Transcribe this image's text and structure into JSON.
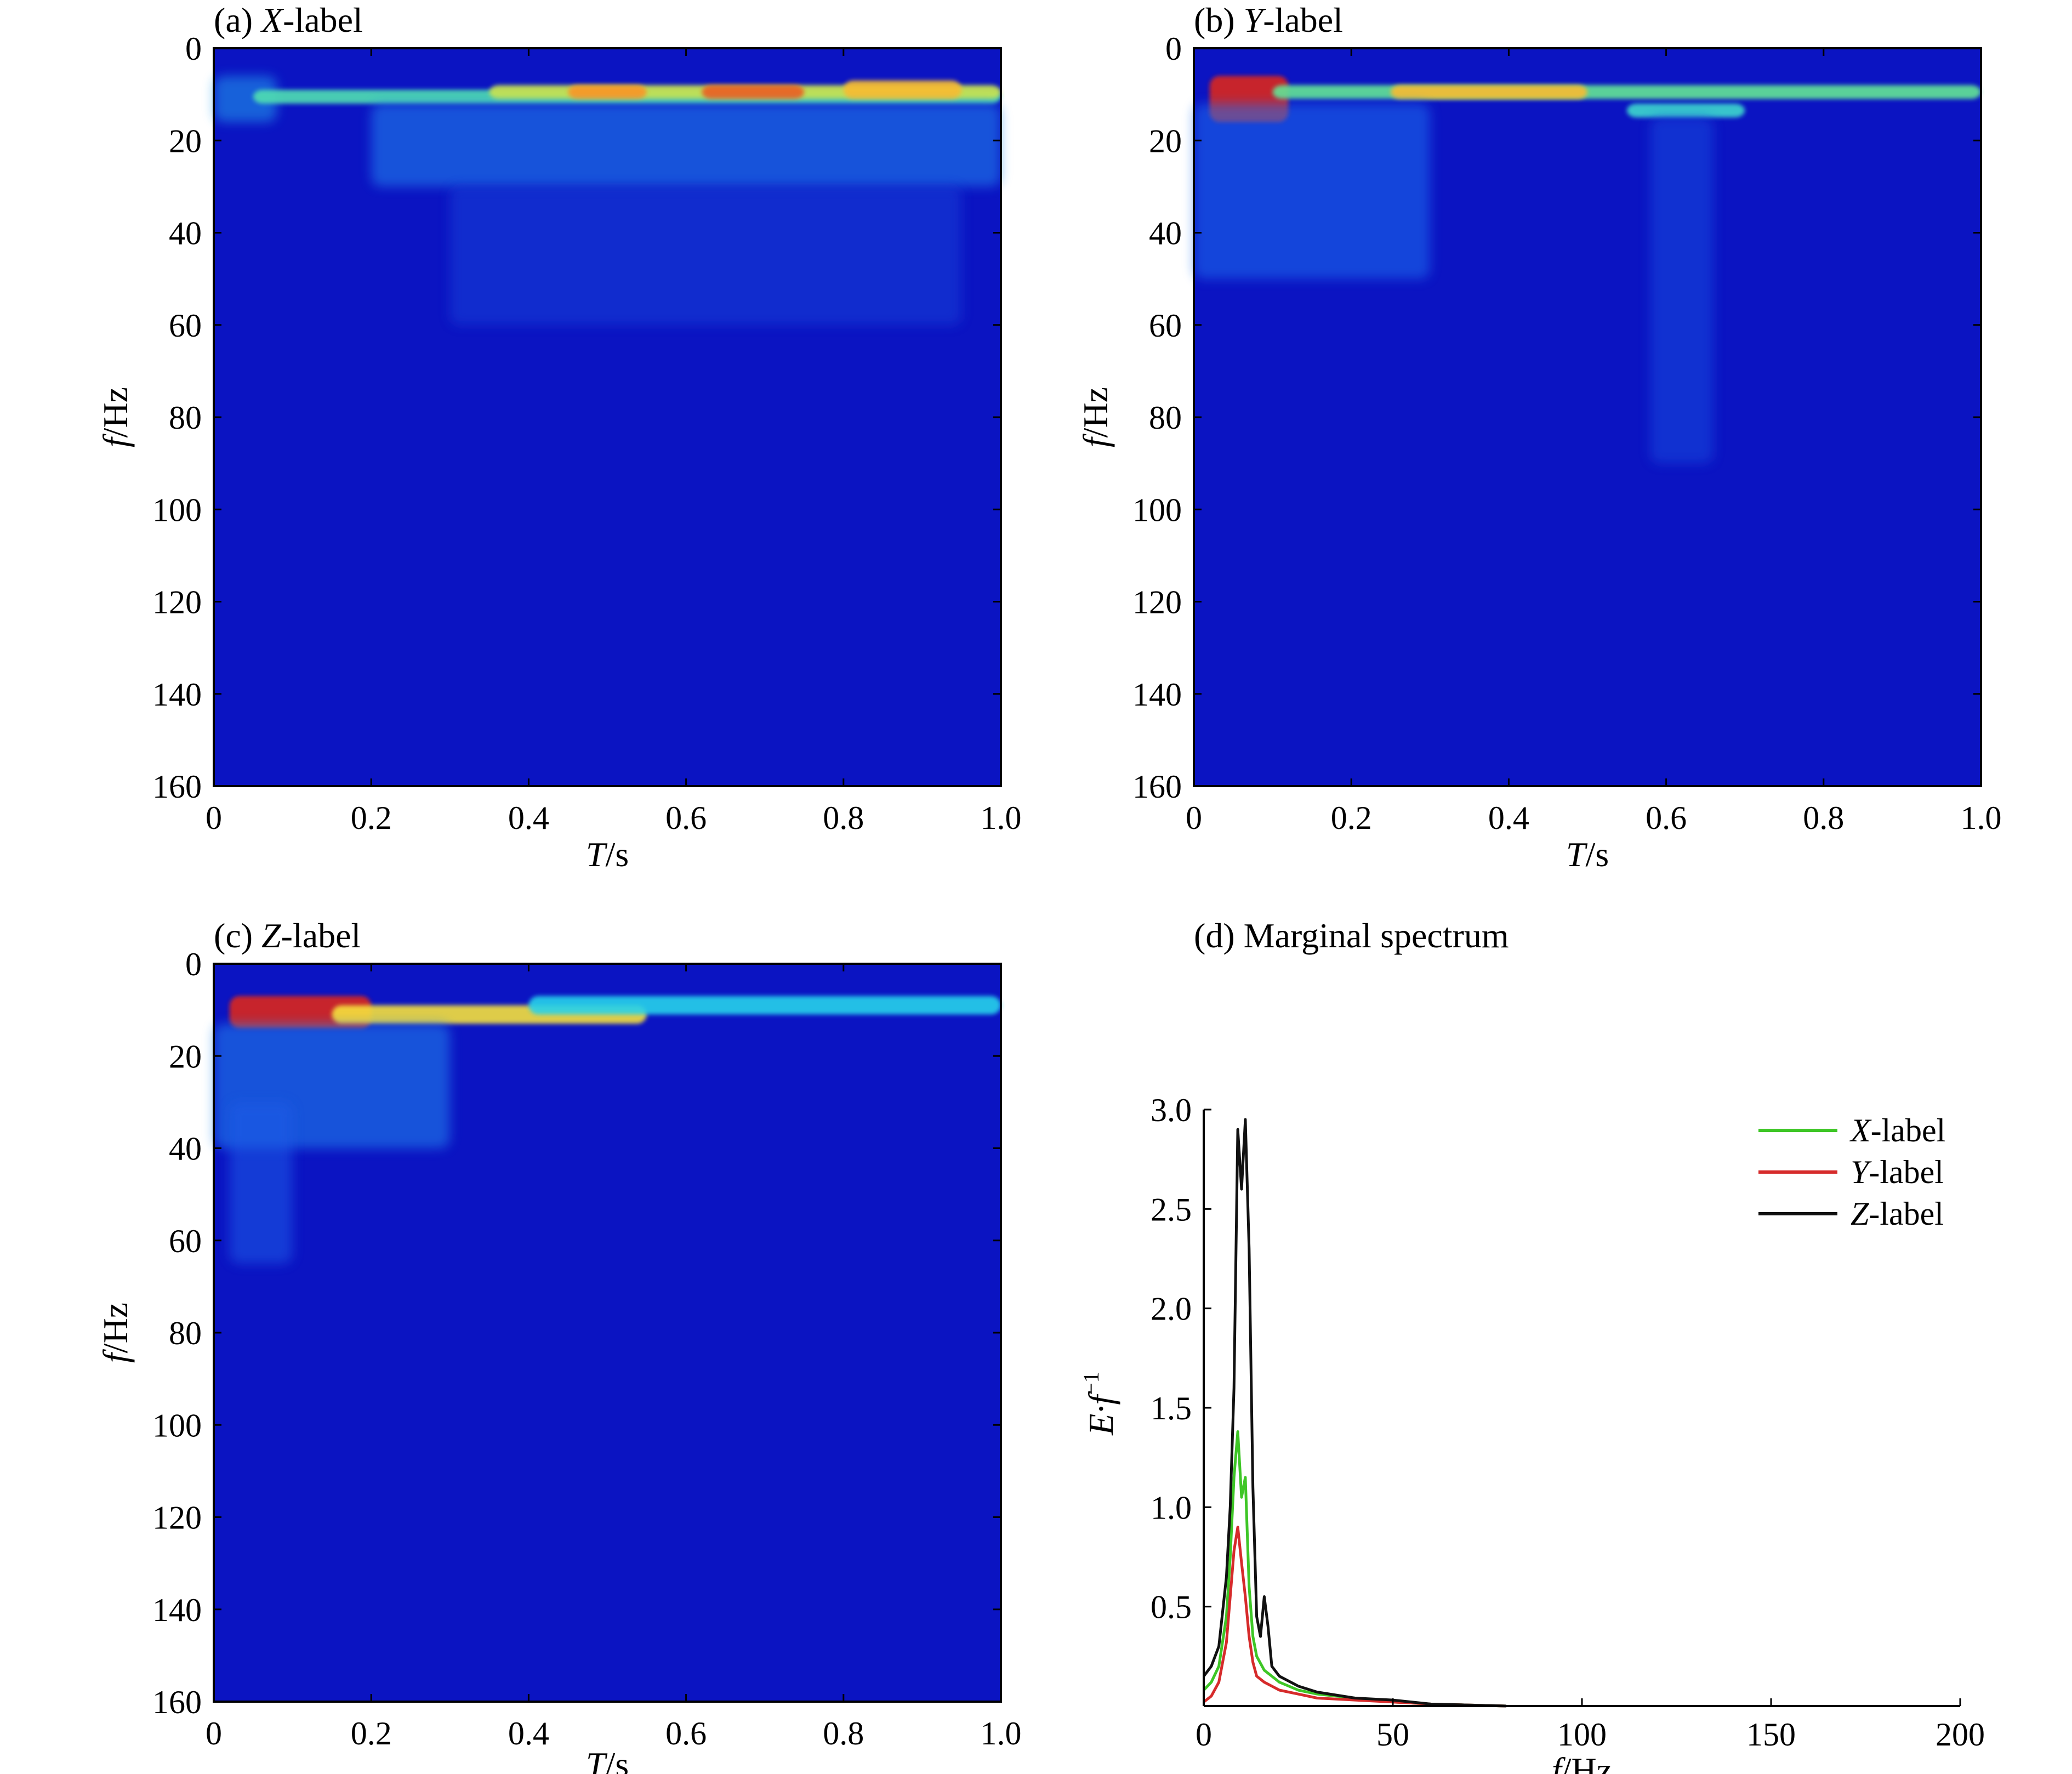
{
  "chart_data": [
    {
      "type": "heatmap",
      "panel": "a",
      "title_prefix": "(a) ",
      "title_var": "X",
      "title_suffix": "-label",
      "xlabel_var": "T",
      "xlabel_unit": "/s",
      "ylabel_var": "f",
      "ylabel_unit": "/Hz",
      "xlim": [
        0,
        1.0
      ],
      "ylim": [
        0,
        160
      ],
      "y_inverted": true,
      "x_ticks": [
        "0",
        "0.2",
        "0.4",
        "0.6",
        "0.8",
        "1.0"
      ],
      "y_ticks": [
        "0",
        "20",
        "40",
        "60",
        "80",
        "100",
        "120",
        "140",
        "160"
      ],
      "background_color": "#0b14c2",
      "energy_bands": [
        {
          "t": [
            0.0,
            0.08
          ],
          "f": [
            6,
            16
          ],
          "level": 0.35
        },
        {
          "t": [
            0.05,
            1.0
          ],
          "f": [
            9,
            12
          ],
          "level": 0.55
        },
        {
          "t": [
            0.35,
            1.0
          ],
          "f": [
            8,
            11
          ],
          "level": 0.75
        },
        {
          "t": [
            0.45,
            0.55
          ],
          "f": [
            8,
            11
          ],
          "level": 0.9
        },
        {
          "t": [
            0.62,
            0.75
          ],
          "f": [
            8,
            11
          ],
          "level": 0.95
        },
        {
          "t": [
            0.8,
            0.95
          ],
          "f": [
            7,
            11
          ],
          "level": 0.85
        },
        {
          "t": [
            0.2,
            1.0
          ],
          "f": [
            12,
            30
          ],
          "level": 0.3
        },
        {
          "t": [
            0.3,
            0.95
          ],
          "f": [
            30,
            60
          ],
          "level": 0.12
        }
      ]
    },
    {
      "type": "heatmap",
      "panel": "b",
      "title_prefix": "(b) ",
      "title_var": "Y",
      "title_suffix": "-label",
      "xlabel_var": "T",
      "xlabel_unit": "/s",
      "ylabel_var": "f",
      "ylabel_unit": "/Hz",
      "xlim": [
        0,
        1.0
      ],
      "ylim": [
        0,
        160
      ],
      "y_inverted": true,
      "x_ticks": [
        "0",
        "0.2",
        "0.4",
        "0.6",
        "0.8",
        "1.0"
      ],
      "y_ticks": [
        "0",
        "20",
        "40",
        "60",
        "80",
        "100",
        "120",
        "140",
        "160"
      ],
      "background_color": "#0b14c2",
      "energy_bands": [
        {
          "t": [
            0.02,
            0.12
          ],
          "f": [
            6,
            16
          ],
          "level": 1.0
        },
        {
          "t": [
            0.1,
            1.0
          ],
          "f": [
            8,
            11
          ],
          "level": 0.6
        },
        {
          "t": [
            0.25,
            0.5
          ],
          "f": [
            8,
            11
          ],
          "level": 0.85
        },
        {
          "t": [
            0.55,
            0.7
          ],
          "f": [
            12,
            15
          ],
          "level": 0.5
        },
        {
          "t": [
            0.0,
            0.3
          ],
          "f": [
            12,
            50
          ],
          "level": 0.25
        },
        {
          "t": [
            0.58,
            0.66
          ],
          "f": [
            15,
            90
          ],
          "level": 0.15
        }
      ]
    },
    {
      "type": "heatmap",
      "panel": "c",
      "title_prefix": "(c) ",
      "title_var": "Z",
      "title_suffix": "-label",
      "xlabel_var": "T",
      "xlabel_unit": "/s",
      "ylabel_var": "f",
      "ylabel_unit": "/Hz",
      "xlim": [
        0,
        1.0
      ],
      "ylim": [
        0,
        160
      ],
      "y_inverted": true,
      "x_ticks": [
        "0",
        "0.2",
        "0.4",
        "0.6",
        "0.8",
        "1.0"
      ],
      "y_ticks": [
        "0",
        "20",
        "40",
        "60",
        "80",
        "100",
        "120",
        "140",
        "160"
      ],
      "background_color": "#0b14c2",
      "energy_bands": [
        {
          "t": [
            0.02,
            0.2
          ],
          "f": [
            7,
            14
          ],
          "level": 1.0
        },
        {
          "t": [
            0.15,
            0.55
          ],
          "f": [
            9,
            13
          ],
          "level": 0.8
        },
        {
          "t": [
            0.4,
            1.0
          ],
          "f": [
            7,
            11
          ],
          "level": 0.45
        },
        {
          "t": [
            0.0,
            0.3
          ],
          "f": [
            13,
            40
          ],
          "level": 0.3
        },
        {
          "t": [
            0.02,
            0.1
          ],
          "f": [
            30,
            65
          ],
          "level": 0.2
        }
      ]
    },
    {
      "type": "line",
      "panel": "d",
      "title": "(d) Marginal spectrum",
      "xlabel_var": "f",
      "xlabel_unit": "/Hz",
      "ylabel_main": "E·f",
      "ylabel_sup": "−1",
      "xlim": [
        0,
        200
      ],
      "ylim": [
        0,
        3.0
      ],
      "x_ticks": [
        "0",
        "50",
        "100",
        "150",
        "200"
      ],
      "y_ticks": [
        "0.5",
        "1.0",
        "1.5",
        "2.0",
        "2.5",
        "3.0"
      ],
      "legend_position": "top-right",
      "series": [
        {
          "name_var": "X",
          "name_suffix": "-label",
          "color": "#3ec626",
          "x": [
            0,
            2,
            4,
            6,
            7,
            8,
            9,
            10,
            11,
            12,
            13,
            14,
            16,
            18,
            20,
            25,
            30,
            40,
            50,
            60,
            80
          ],
          "y": [
            0.08,
            0.12,
            0.2,
            0.45,
            0.75,
            1.15,
            1.38,
            1.05,
            1.15,
            0.6,
            0.35,
            0.25,
            0.18,
            0.15,
            0.12,
            0.08,
            0.06,
            0.04,
            0.02,
            0.01,
            0.0
          ]
        },
        {
          "name_var": "Y",
          "name_suffix": "-label",
          "color": "#d62b2b",
          "x": [
            0,
            2,
            4,
            6,
            7,
            8,
            9,
            10,
            11,
            12,
            13,
            14,
            16,
            18,
            20,
            25,
            30,
            40,
            50,
            60,
            80
          ],
          "y": [
            0.02,
            0.05,
            0.12,
            0.32,
            0.55,
            0.78,
            0.9,
            0.72,
            0.55,
            0.35,
            0.22,
            0.15,
            0.12,
            0.1,
            0.08,
            0.06,
            0.04,
            0.03,
            0.02,
            0.01,
            0.0
          ]
        },
        {
          "name_var": "Z",
          "name_suffix": "-label",
          "color": "#111111",
          "x": [
            0,
            2,
            4,
            6,
            7,
            8,
            9,
            10,
            11,
            12,
            13,
            14,
            15,
            16,
            17,
            18,
            20,
            25,
            30,
            40,
            50,
            60,
            80
          ],
          "y": [
            0.15,
            0.2,
            0.3,
            0.65,
            1.0,
            1.6,
            2.9,
            2.6,
            2.95,
            2.3,
            1.1,
            0.45,
            0.35,
            0.55,
            0.4,
            0.2,
            0.15,
            0.1,
            0.07,
            0.04,
            0.03,
            0.01,
            0.0
          ]
        }
      ]
    }
  ]
}
